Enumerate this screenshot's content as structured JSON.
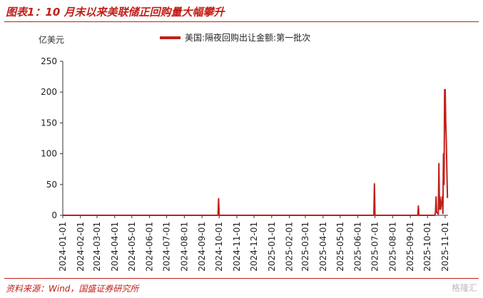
{
  "figure": {
    "title": "图表1：10 月末以来美联储正回购量大幅攀升",
    "source": "资料来源：Wind，国盛证券研究所",
    "watermark": "格隆汇"
  },
  "colors": {
    "series": "#c0201a",
    "accent": "#c0201a",
    "axis": "#333333"
  },
  "chart_data": {
    "type": "line",
    "title": "",
    "ylabel": "亿美元",
    "xlabel": "",
    "ylim": [
      0,
      250
    ],
    "yticks": [
      0,
      50,
      100,
      150,
      200,
      250
    ],
    "xlim": [
      "2024-01-01",
      "2025-11-06"
    ],
    "xticks": [
      "2024-01-01",
      "2024-02-01",
      "2024-03-01",
      "2024-04-01",
      "2024-05-01",
      "2024-06-01",
      "2024-07-01",
      "2024-08-01",
      "2024-09-01",
      "2024-10-01",
      "2024-11-01",
      "2024-12-01",
      "2025-01-01",
      "2025-02-01",
      "2025-03-01",
      "2025-04-01",
      "2025-05-01",
      "2025-06-01",
      "2025-07-01",
      "2025-08-01",
      "2025-09-01",
      "2025-10-01",
      "2025-11-01"
    ],
    "grid": false,
    "legend": "top-center",
    "series": [
      {
        "name": "美国:隔夜回购出让金额:第一批次",
        "points": [
          [
            "2024-01-01",
            0
          ],
          [
            "2024-09-29",
            0
          ],
          [
            "2024-09-30",
            27
          ],
          [
            "2024-10-01",
            0
          ],
          [
            "2025-06-29",
            0
          ],
          [
            "2025-06-30",
            51
          ],
          [
            "2025-07-01",
            0
          ],
          [
            "2025-09-14",
            0
          ],
          [
            "2025-09-15",
            15
          ],
          [
            "2025-09-16",
            0
          ],
          [
            "2025-10-14",
            0
          ],
          [
            "2025-10-15",
            5
          ],
          [
            "2025-10-16",
            30
          ],
          [
            "2025-10-17",
            5
          ],
          [
            "2025-10-20",
            2
          ],
          [
            "2025-10-21",
            84
          ],
          [
            "2025-10-22",
            10
          ],
          [
            "2025-10-23",
            30
          ],
          [
            "2025-10-24",
            10
          ],
          [
            "2025-10-27",
            30
          ],
          [
            "2025-10-28",
            3
          ],
          [
            "2025-10-29",
            100
          ],
          [
            "2025-10-30",
            50
          ],
          [
            "2025-10-31",
            204
          ],
          [
            "2025-11-01",
            204
          ],
          [
            "2025-11-02",
            150
          ],
          [
            "2025-11-03",
            118
          ],
          [
            "2025-11-04",
            70
          ],
          [
            "2025-11-05",
            28
          ]
        ]
      }
    ]
  }
}
